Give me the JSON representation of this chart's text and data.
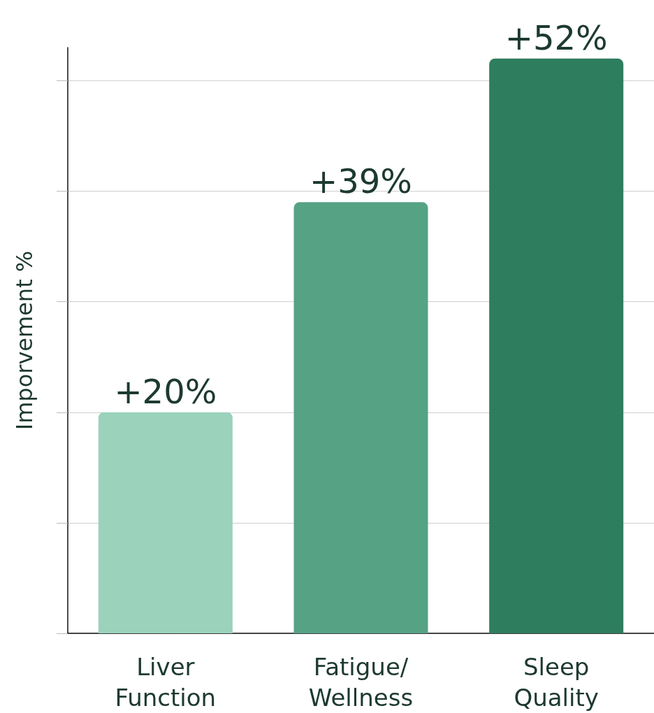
{
  "chart_data": {
    "type": "bar",
    "ylabel": "Imporvement %",
    "categories": [
      "Liver\nFunction",
      "Fatigue/\nWellness",
      "Sleep\nQuality"
    ],
    "values": [
      20,
      39,
      52
    ],
    "colors": [
      "#9ad2bb",
      "#56a285",
      "#2e7d5e"
    ],
    "value_labels": [
      "+20%",
      "+39%",
      "+52%"
    ],
    "ylim": [
      0,
      53
    ],
    "yticks": [
      {
        "value": 0,
        "label": null
      },
      {
        "value": 10,
        "label": null
      },
      {
        "value": 20,
        "label": null
      },
      {
        "value": 30,
        "label": null
      },
      {
        "value": 40,
        "label": null
      },
      {
        "value": 50,
        "label": null
      }
    ],
    "tick_labels": "x",
    "grid": "y"
  }
}
